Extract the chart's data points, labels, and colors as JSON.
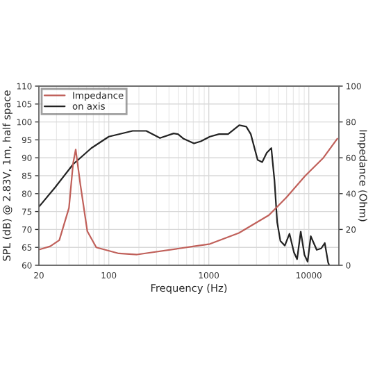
{
  "chart_data": {
    "type": "line",
    "xlabel": "Frequency (Hz)",
    "ylabel": "SPL (dB) @ 2.83V, 1m, half space",
    "y2label": "Impedance (Ohm)",
    "log": "x",
    "grid": true,
    "legend": "top left",
    "xlim": [
      20,
      20000
    ],
    "xticks": [
      20,
      100,
      1000,
      10000
    ],
    "ylim": [
      60,
      110
    ],
    "yticks": [
      60,
      65,
      70,
      75,
      80,
      85,
      90,
      95,
      100,
      105,
      110
    ],
    "y2lim": [
      0,
      100
    ],
    "y2ticks": [
      0,
      20,
      40,
      60,
      80,
      100
    ],
    "series": [
      {
        "name": "Impedance",
        "color": "#c0605a",
        "axis": "y2",
        "x": [
          20,
          26,
          32,
          40,
          44,
          46.7,
          52,
          61,
          75,
          126,
          192,
          492,
          675,
          1026,
          2000,
          4000,
          6000,
          9230,
          14000,
          19300
        ],
        "values": [
          8.7,
          10.6,
          14,
          32,
          57,
          64.6,
          45,
          19,
          10,
          6.6,
          6,
          9.3,
          10.4,
          11.9,
          18,
          28,
          38,
          50,
          60,
          70.7
        ]
      },
      {
        "name": "on axis",
        "color": "#222222",
        "axis": "y",
        "x": [
          20,
          29,
          44,
          67,
          100,
          173,
          237,
          325,
          445,
          492,
          560,
          711,
          832,
          1026,
          1265,
          1560,
          2025,
          2371,
          2630,
          3080,
          3420,
          3800,
          4220,
          4540,
          4830,
          5200,
          5760,
          6410,
          7110,
          7640,
          8310,
          9050,
          9730,
          10470,
          12000,
          13300,
          14450,
          15600,
          16000
        ],
        "values": [
          76.3,
          81.7,
          88.2,
          92.7,
          95.9,
          97.5,
          97.5,
          95.5,
          96.8,
          96.6,
          95.3,
          94.0,
          94.6,
          95.9,
          96.6,
          96.6,
          99.1,
          98.7,
          96.6,
          89.4,
          88.8,
          91.4,
          92.7,
          83.6,
          72.0,
          66.8,
          65.5,
          68.8,
          63.6,
          61.7,
          69.4,
          62.9,
          61.0,
          68.1,
          64.3,
          64.7,
          66.2,
          60.8,
          60
        ]
      }
    ]
  }
}
